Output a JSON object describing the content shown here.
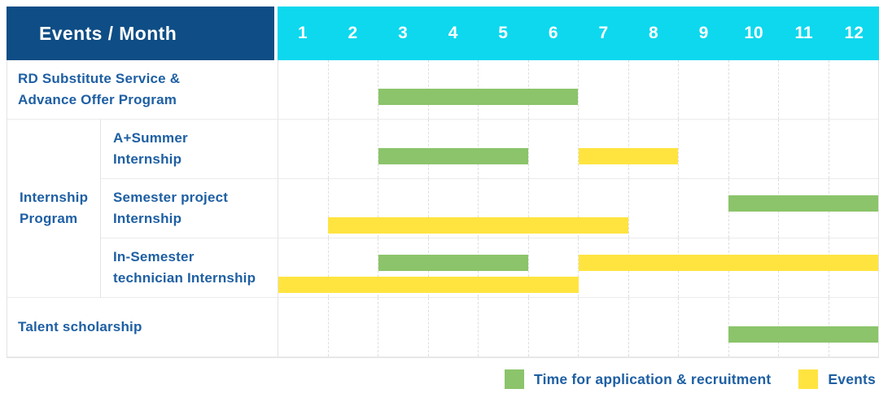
{
  "header": {
    "title": "Events / Month",
    "months": [
      "1",
      "2",
      "3",
      "4",
      "5",
      "6",
      "7",
      "8",
      "9",
      "10",
      "11",
      "12"
    ]
  },
  "colors": {
    "header_bg": "#0e4d85",
    "months_bg": "#0dd8ee",
    "header_text": "#ffffff",
    "label_text": "#1e5fa3",
    "green": "#8bc46a",
    "yellow": "#ffe440"
  },
  "render": {
    "group": {
      "id": "internship-program",
      "label_lines": [
        "Internship",
        "Program"
      ]
    },
    "rows": [
      {
        "id": "rd-substitute-service",
        "kind": "full",
        "label_lines": [
          "RD Substitute Service &",
          "Advance Offer Program"
        ],
        "bars": [
          {
            "color": "green",
            "start": 3,
            "end": 6,
            "line": "single"
          }
        ]
      },
      {
        "id": "a-plus-summer-internship",
        "kind": "sub",
        "label_lines": [
          "A+Summer",
          "Internship"
        ],
        "bars": [
          {
            "color": "green",
            "start": 3,
            "end": 5,
            "line": "single"
          },
          {
            "color": "yellow",
            "start": 7,
            "end": 8,
            "line": "single"
          }
        ]
      },
      {
        "id": "semester-project-internship",
        "kind": "sub",
        "label_lines": [
          "Semester project",
          "Internship"
        ],
        "bars": [
          {
            "color": "green",
            "start": 10,
            "end": 12,
            "line": "upper"
          },
          {
            "color": "yellow",
            "start": 2,
            "end": 7,
            "line": "lower"
          }
        ]
      },
      {
        "id": "in-semester-technician-internship",
        "kind": "sub",
        "label_lines": [
          "In-Semester",
          "technician Internship"
        ],
        "bars": [
          {
            "color": "green",
            "start": 3,
            "end": 5,
            "line": "upper"
          },
          {
            "color": "yellow",
            "start": 7,
            "end": 12,
            "line": "upper"
          },
          {
            "color": "yellow",
            "start": 1,
            "end": 6,
            "line": "lower"
          }
        ]
      },
      {
        "id": "talent-scholarship",
        "kind": "full",
        "label_lines": [
          "Talent scholarship"
        ],
        "bars": [
          {
            "color": "green",
            "start": 10,
            "end": 12,
            "line": "single"
          }
        ]
      }
    ]
  },
  "legend": {
    "items": [
      {
        "color": "green",
        "label": "Time for application & recruitment"
      },
      {
        "color": "yellow",
        "label": "Events"
      }
    ]
  },
  "chart_data": {
    "type": "bar",
    "subtype": "gantt",
    "title": "Events / Month",
    "x": {
      "label": "Month",
      "ticks": [
        1,
        2,
        3,
        4,
        5,
        6,
        7,
        8,
        9,
        10,
        11,
        12
      ],
      "range": [
        1,
        12
      ]
    },
    "grid": true,
    "legend_position": "bottom-right",
    "series_legend": [
      "Time for application & recruitment",
      "Events"
    ],
    "tasks": [
      {
        "group": null,
        "name": "RD Substitute Service & Advance Offer Program",
        "bars": [
          {
            "series": "Time for application & recruitment",
            "start_month": 3,
            "end_month": 6
          }
        ]
      },
      {
        "group": "Internship Program",
        "name": "A+Summer Internship",
        "bars": [
          {
            "series": "Time for application & recruitment",
            "start_month": 3,
            "end_month": 5
          },
          {
            "series": "Events",
            "start_month": 7,
            "end_month": 8
          }
        ]
      },
      {
        "group": "Internship Program",
        "name": "Semester project Internship",
        "bars": [
          {
            "series": "Time for application & recruitment",
            "start_month": 10,
            "end_month": 12
          },
          {
            "series": "Events",
            "start_month": 2,
            "end_month": 7
          }
        ]
      },
      {
        "group": "Internship Program",
        "name": "In-Semester technician Internship",
        "bars": [
          {
            "series": "Time for application & recruitment",
            "start_month": 3,
            "end_month": 5
          },
          {
            "series": "Events",
            "start_month": 7,
            "end_month": 12
          },
          {
            "series": "Events",
            "start_month": 1,
            "end_month": 6
          }
        ]
      },
      {
        "group": null,
        "name": "Talent scholarship",
        "bars": [
          {
            "series": "Time for application & recruitment",
            "start_month": 10,
            "end_month": 12
          }
        ]
      }
    ]
  }
}
